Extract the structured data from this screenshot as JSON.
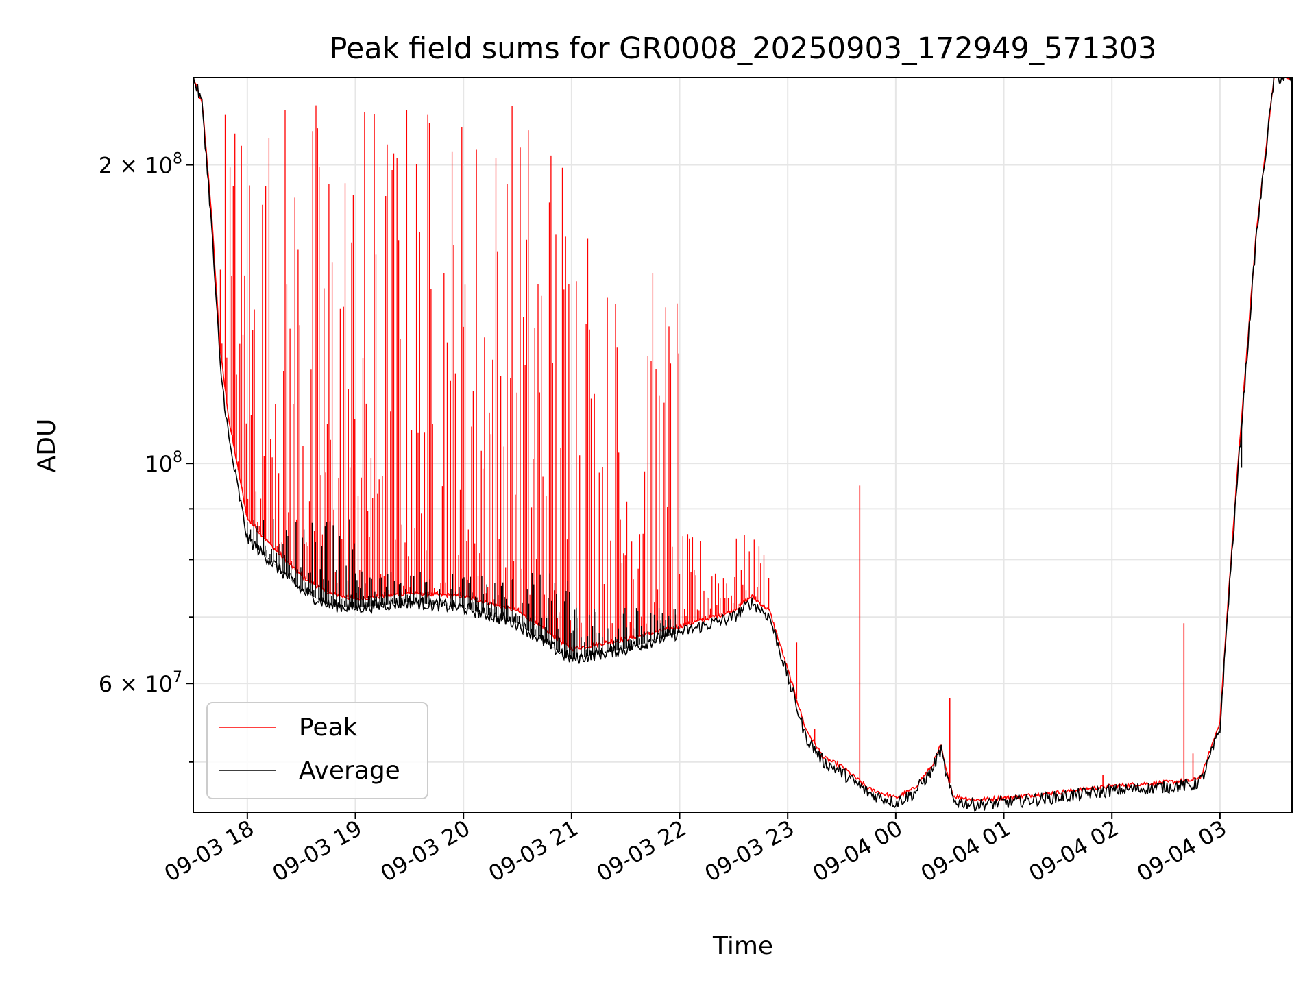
{
  "chart_data": {
    "type": "line",
    "title": "Peak field sums for GR0008_20250903_172949_571303",
    "xlabel": "Time",
    "ylabel": "ADU",
    "y_scale": "log",
    "ylim": [
      44500000,
      245000000
    ],
    "xlim": [
      "09-03 17:30",
      "09-04 03:40"
    ],
    "grid": true,
    "legend_position": "lower-left",
    "x_ticks": [
      "09-03 18",
      "09-03 19",
      "09-03 20",
      "09-03 21",
      "09-03 22",
      "09-03 23",
      "09-04 00",
      "09-04 01",
      "09-04 02",
      "09-04 03"
    ],
    "y_major_ticks": [
      {
        "value": 100000000,
        "label": "10^8"
      },
      {
        "value": 60000000,
        "label": "6 × 10^7"
      },
      {
        "value": 200000000,
        "label": "2 × 10^8"
      }
    ],
    "y_minor_ticks": [
      50000000,
      70000000,
      80000000,
      90000000
    ],
    "series": [
      {
        "name": "Peak",
        "color": "#ff0000",
        "baseline": [
          [
            "09-03 17:30",
            245000000
          ],
          [
            "09-03 17:35",
            230000000
          ],
          [
            "09-03 17:40",
            180000000
          ],
          [
            "09-03 17:45",
            130000000
          ],
          [
            "09-03 17:50",
            110000000
          ],
          [
            "09-03 18:00",
            88000000
          ],
          [
            "09-03 18:15",
            82000000
          ],
          [
            "09-03 18:30",
            77000000
          ],
          [
            "09-03 18:45",
            74000000
          ],
          [
            "09-03 19:00",
            73000000
          ],
          [
            "09-03 19:15",
            73500000
          ],
          [
            "09-03 19:30",
            74000000
          ],
          [
            "09-03 20:00",
            73500000
          ],
          [
            "09-03 20:30",
            71000000
          ],
          [
            "09-03 20:45",
            68000000
          ],
          [
            "09-03 21:00",
            65000000
          ],
          [
            "09-03 21:30",
            66500000
          ],
          [
            "09-03 22:00",
            68500000
          ],
          [
            "09-03 22:30",
            71000000
          ],
          [
            "09-03 22:40",
            73500000
          ],
          [
            "09-03 22:50",
            71000000
          ],
          [
            "09-03 23:00",
            62000000
          ],
          [
            "09-03 23:10",
            54000000
          ],
          [
            "09-03 23:20",
            50500000
          ],
          [
            "09-03 23:30",
            49500000
          ],
          [
            "09-03 23:45",
            47000000
          ],
          [
            "09-04 00:00",
            46000000
          ],
          [
            "09-04 00:10",
            47000000
          ],
          [
            "09-04 00:20",
            49500000
          ],
          [
            "09-04 00:25",
            52000000
          ],
          [
            "09-04 00:28",
            49000000
          ],
          [
            "09-04 00:32",
            46200000
          ],
          [
            "09-04 00:45",
            45800000
          ],
          [
            "09-04 01:00",
            46000000
          ],
          [
            "09-04 01:30",
            46600000
          ],
          [
            "09-04 02:00",
            47300000
          ],
          [
            "09-04 02:45",
            47900000
          ],
          [
            "09-04 02:50",
            48500000
          ],
          [
            "09-04 03:00",
            55000000
          ],
          [
            "09-04 03:05",
            75000000
          ],
          [
            "09-04 03:10",
            100000000
          ],
          [
            "09-04 03:20",
            170000000
          ],
          [
            "09-04 03:30",
            245000000
          ],
          [
            "09-04 03:40",
            245000000
          ]
        ],
        "noise": [
          {
            "start": "09-03 17:45",
            "end": "09-03 21:00",
            "level": 245000000
          },
          {
            "start": "09-03 21:00",
            "end": "09-03 21:10",
            "level": 245000000
          },
          {
            "start": "09-03 21:10",
            "end": "09-03 22:00",
            "level": 160000000
          },
          {
            "start": "09-03 22:00",
            "end": "09-03 22:50",
            "level": 85000000
          }
        ],
        "spikes": [
          [
            "09-03 23:40",
            95000000
          ],
          [
            "09-04 00:30",
            58000000
          ],
          [
            "09-03 23:05",
            66000000
          ],
          [
            "09-03 23:15",
            54000000
          ],
          [
            "09-04 02:40",
            69000000
          ],
          [
            "09-04 02:45",
            51000000
          ],
          [
            "09-04 01:55",
            48500000
          ]
        ]
      },
      {
        "name": "Average",
        "color": "#000000",
        "baseline": [
          [
            "09-03 17:30",
            245000000
          ],
          [
            "09-03 17:35",
            230000000
          ],
          [
            "09-03 17:40",
            175000000
          ],
          [
            "09-03 17:45",
            125000000
          ],
          [
            "09-03 17:50",
            105000000
          ],
          [
            "09-03 18:00",
            84000000
          ],
          [
            "09-03 18:15",
            79000000
          ],
          [
            "09-03 18:30",
            74500000
          ],
          [
            "09-03 18:45",
            72000000
          ],
          [
            "09-03 19:00",
            71500000
          ],
          [
            "09-03 19:15",
            72000000
          ],
          [
            "09-03 19:30",
            72500000
          ],
          [
            "09-03 20:00",
            71500000
          ],
          [
            "09-03 20:30",
            69000000
          ],
          [
            "09-03 20:45",
            66000000
          ],
          [
            "09-03 21:00",
            63500000
          ],
          [
            "09-03 21:30",
            65000000
          ],
          [
            "09-03 22:00",
            67500000
          ],
          [
            "09-03 22:30",
            70000000
          ],
          [
            "09-03 22:40",
            72500000
          ],
          [
            "09-03 22:50",
            70000000
          ],
          [
            "09-03 23:00",
            61000000
          ],
          [
            "09-03 23:10",
            53000000
          ],
          [
            "09-03 23:20",
            50000000
          ],
          [
            "09-03 23:30",
            48800000
          ],
          [
            "09-03 23:45",
            46500000
          ],
          [
            "09-04 00:00",
            45500000
          ],
          [
            "09-04 00:10",
            46500000
          ],
          [
            "09-04 00:20",
            49000000
          ],
          [
            "09-04 00:25",
            51500000
          ],
          [
            "09-04 00:28",
            48500000
          ],
          [
            "09-04 00:32",
            45700000
          ],
          [
            "09-04 00:45",
            45300000
          ],
          [
            "09-04 01:00",
            45500000
          ],
          [
            "09-04 01:30",
            46100000
          ],
          [
            "09-04 02:00",
            46800000
          ],
          [
            "09-04 02:45",
            47400000
          ],
          [
            "09-04 02:50",
            48000000
          ],
          [
            "09-04 03:00",
            54000000
          ],
          [
            "09-04 03:05",
            74000000
          ],
          [
            "09-04 03:10",
            98000000
          ],
          [
            "09-04 03:20",
            168000000
          ],
          [
            "09-04 03:30",
            245000000
          ],
          [
            "09-04 03:40",
            245000000
          ]
        ],
        "noise": [
          {
            "start": "09-03 18:00",
            "end": "09-03 19:00",
            "level": 88000000
          },
          {
            "start": "09-03 19:00",
            "end": "09-03 21:00",
            "level": 78000000
          },
          {
            "start": "09-03 21:00",
            "end": "09-03 22:00",
            "level": 72000000
          }
        ],
        "spikes": [
          [
            "09-04 03:12",
            99000000
          ]
        ]
      }
    ]
  }
}
